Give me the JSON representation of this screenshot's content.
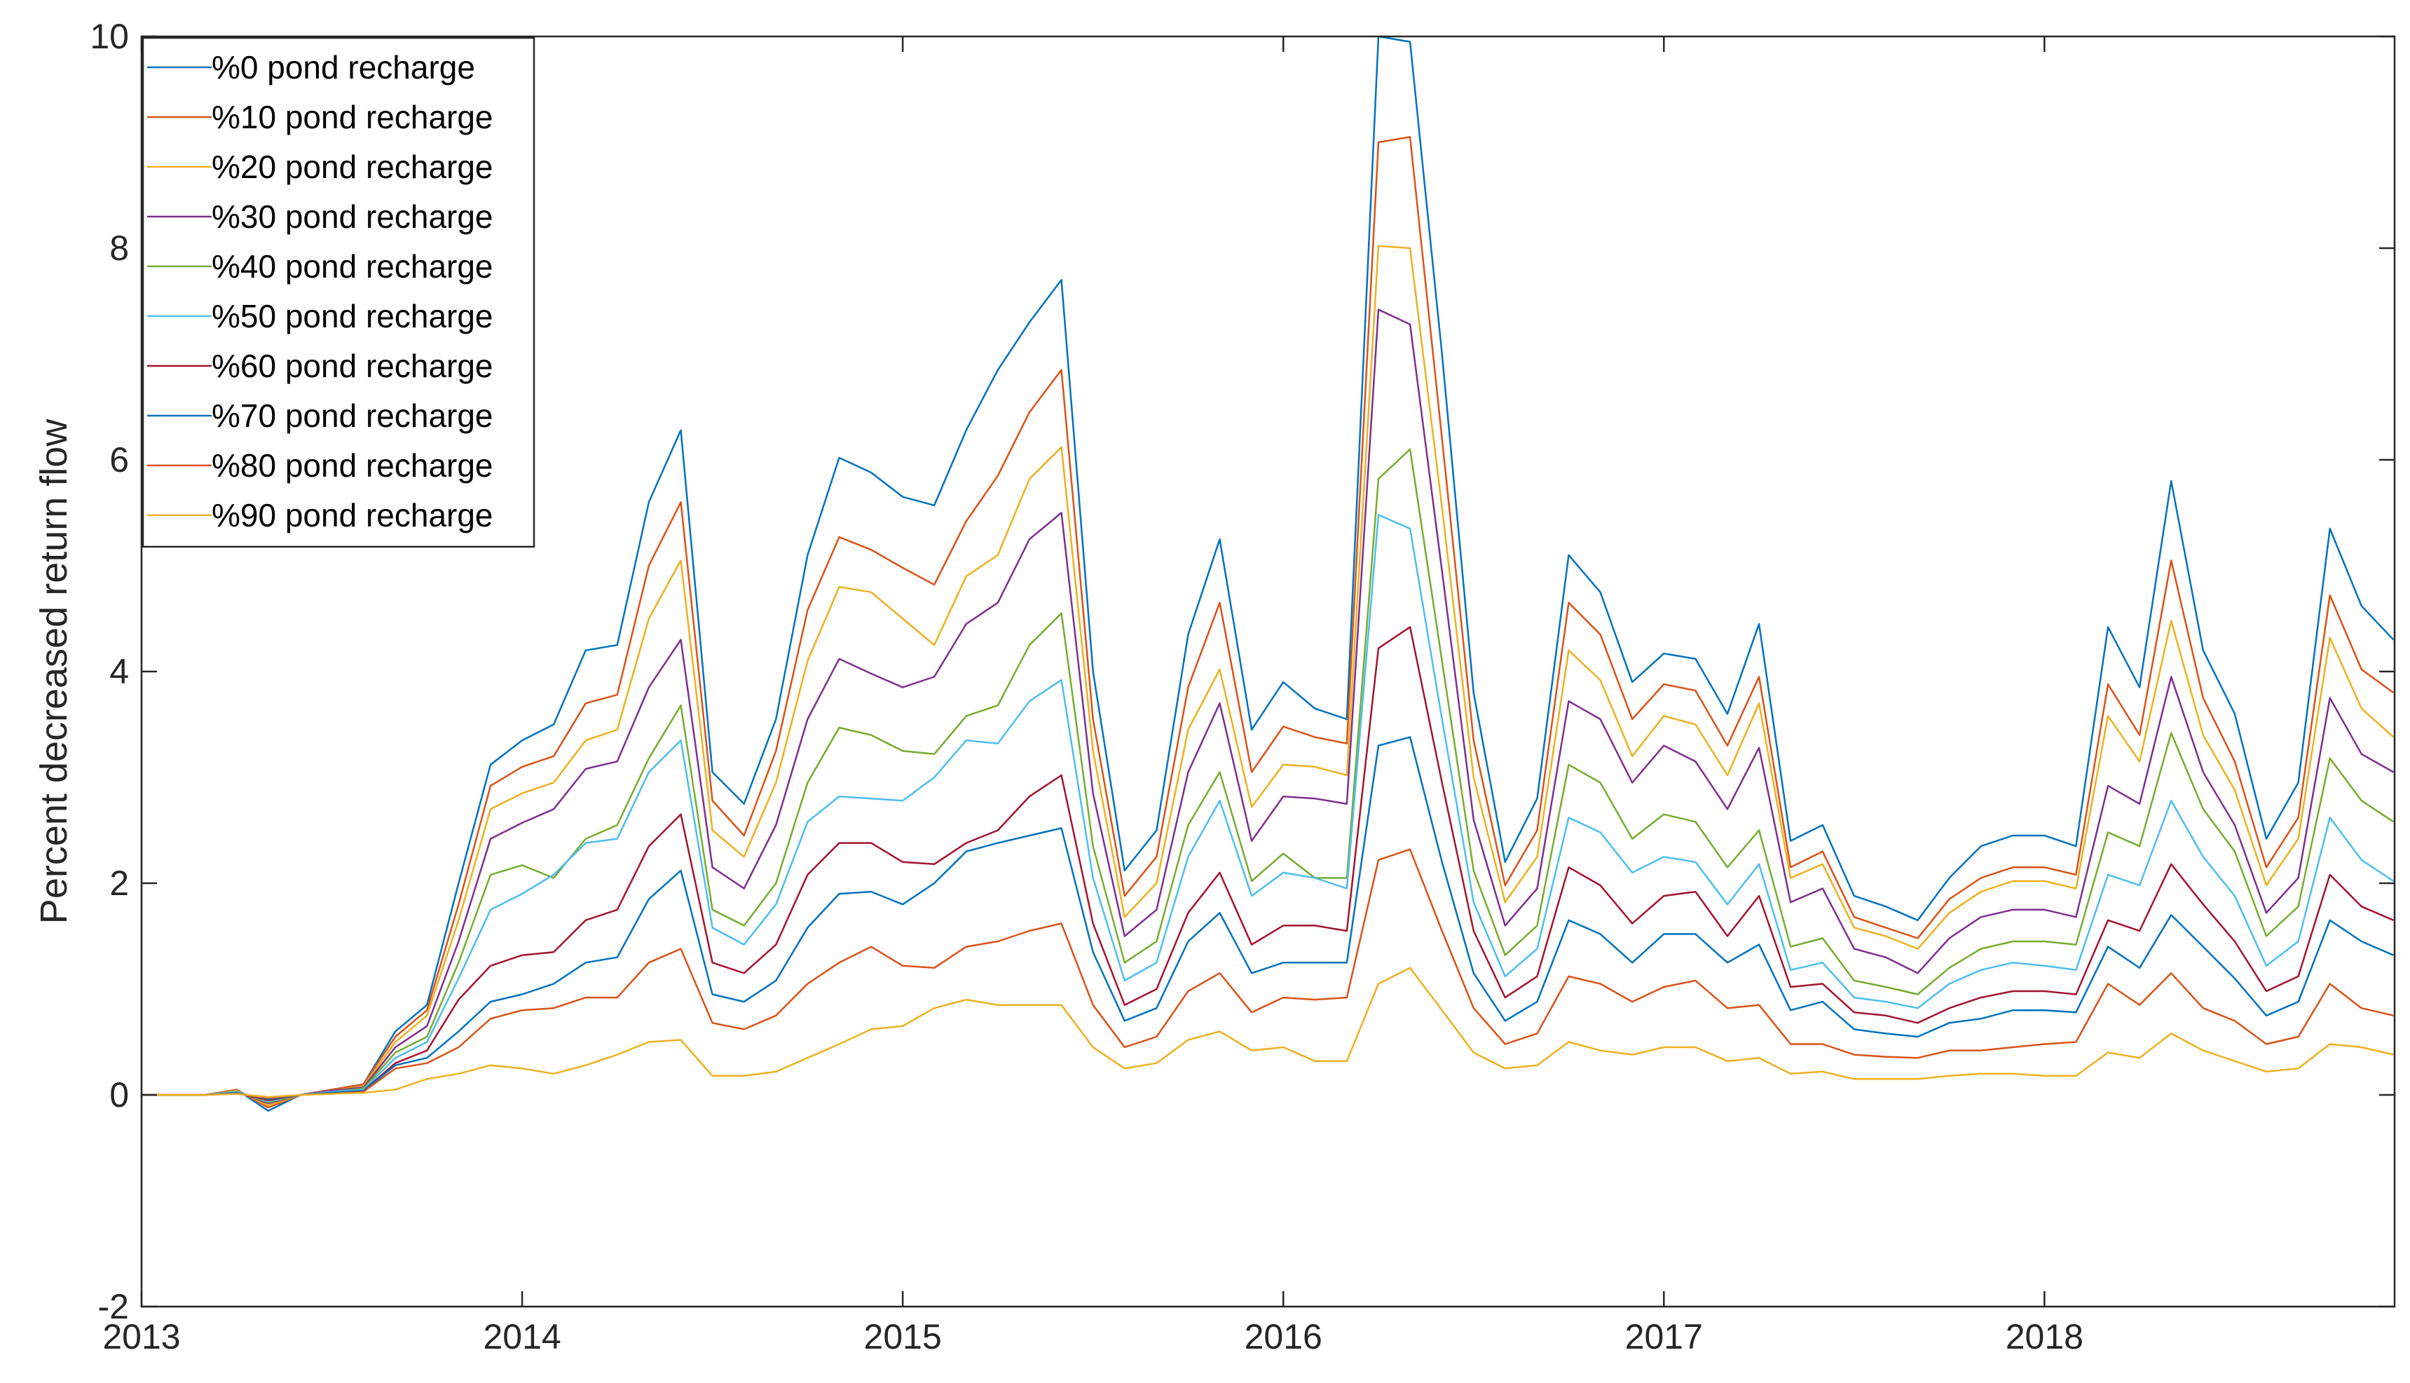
{
  "chart_data": {
    "type": "line",
    "title": "",
    "xlabel": "",
    "ylabel": "Percent decreased return flow",
    "xlim": [
      2013,
      2018.92
    ],
    "ylim": [
      -2,
      10
    ],
    "xticks": [
      2013,
      2014,
      2015,
      2016,
      2017,
      2018
    ],
    "xtick_labels": [
      "2013",
      "2014",
      "2015",
      "2016",
      "2017",
      "2018"
    ],
    "yticks": [
      -2,
      0,
      2,
      4,
      6,
      8,
      10
    ],
    "ytick_labels": [
      "-2",
      "0",
      "2",
      "4",
      "6",
      "8",
      "10"
    ],
    "grid": false,
    "legend_position": "top-left",
    "x": [
      2013.0,
      2013.083,
      2013.167,
      2013.25,
      2013.333,
      2013.417,
      2013.5,
      2013.583,
      2013.667,
      2013.75,
      2013.833,
      2013.917,
      2014.0,
      2014.083,
      2014.167,
      2014.25,
      2014.333,
      2014.417,
      2014.5,
      2014.583,
      2014.667,
      2014.75,
      2014.833,
      2014.917,
      2015.0,
      2015.083,
      2015.167,
      2015.25,
      2015.333,
      2015.417,
      2015.5,
      2015.583,
      2015.667,
      2015.75,
      2015.833,
      2015.917,
      2016.0,
      2016.083,
      2016.167,
      2016.25,
      2016.333,
      2016.417,
      2016.5,
      2016.583,
      2016.667,
      2016.75,
      2016.833,
      2016.917,
      2017.0,
      2017.083,
      2017.167,
      2017.25,
      2017.333,
      2017.417,
      2017.5,
      2017.583,
      2017.667,
      2017.75,
      2017.833,
      2017.917,
      2018.0,
      2018.083,
      2018.167,
      2018.25,
      2018.333,
      2018.417,
      2018.5,
      2018.583,
      2018.667,
      2018.75,
      2018.833,
      2018.917
    ],
    "series": [
      {
        "name": "%0 pond recharge",
        "color": "#0072BD",
        "values": [
          0,
          0,
          0,
          0.05,
          -0.15,
          0,
          0.05,
          0.1,
          0.6,
          0.85,
          2.0,
          3.12,
          3.35,
          3.5,
          4.2,
          4.25,
          5.6,
          6.28,
          3.05,
          2.75,
          3.55,
          5.1,
          6.02,
          5.88,
          5.65,
          5.57,
          6.28,
          6.85,
          7.3,
          7.7,
          4.0,
          2.12,
          2.5,
          4.35,
          5.25,
          3.45,
          3.9,
          3.65,
          3.55,
          10.0,
          9.95,
          7.0,
          3.8,
          2.2,
          2.8,
          5.1,
          4.75,
          3.9,
          4.17,
          4.12,
          3.6,
          4.45,
          2.4,
          2.55,
          1.88,
          1.78,
          1.65,
          2.05,
          2.35,
          2.45,
          2.45,
          2.35,
          4.42,
          3.85,
          5.8,
          4.2,
          3.6,
          2.42,
          2.95,
          5.35,
          4.62,
          4.3
        ]
      },
      {
        "name": "%10 pond recharge",
        "color": "#D95319",
        "values": [
          0,
          0,
          0,
          0.05,
          -0.12,
          0,
          0.05,
          0.1,
          0.55,
          0.8,
          1.8,
          2.92,
          3.1,
          3.2,
          3.7,
          3.78,
          5.0,
          5.6,
          2.78,
          2.45,
          3.25,
          4.58,
          5.27,
          5.15,
          4.98,
          4.82,
          5.42,
          5.85,
          6.45,
          6.85,
          3.55,
          1.88,
          2.25,
          3.85,
          4.65,
          3.05,
          3.48,
          3.38,
          3.32,
          9.0,
          9.05,
          6.2,
          3.35,
          1.98,
          2.5,
          4.65,
          4.35,
          3.55,
          3.88,
          3.82,
          3.3,
          3.95,
          2.15,
          2.3,
          1.68,
          1.58,
          1.48,
          1.85,
          2.05,
          2.15,
          2.15,
          2.08,
          3.88,
          3.4,
          5.05,
          3.75,
          3.15,
          2.15,
          2.62,
          4.72,
          4.02,
          3.8
        ]
      },
      {
        "name": "%20 pond recharge",
        "color": "#EDB120",
        "values": [
          0,
          0,
          0,
          0.04,
          -0.1,
          0,
          0.04,
          0.08,
          0.5,
          0.75,
          1.65,
          2.7,
          2.85,
          2.95,
          3.35,
          3.45,
          4.5,
          5.05,
          2.5,
          2.25,
          2.95,
          4.1,
          4.8,
          4.75,
          4.5,
          4.25,
          4.9,
          5.1,
          5.82,
          6.12,
          3.25,
          1.68,
          2.0,
          3.45,
          4.02,
          2.72,
          3.12,
          3.1,
          3.02,
          8.02,
          8.0,
          5.55,
          3.0,
          1.82,
          2.25,
          4.2,
          3.92,
          3.2,
          3.58,
          3.5,
          3.02,
          3.7,
          2.05,
          2.18,
          1.58,
          1.5,
          1.38,
          1.72,
          1.92,
          2.02,
          2.02,
          1.95,
          3.58,
          3.15,
          4.48,
          3.4,
          2.88,
          1.98,
          2.42,
          4.32,
          3.65,
          3.38
        ]
      },
      {
        "name": "%30 pond recharge",
        "color": "#7E2F8E",
        "values": [
          0,
          0,
          0,
          0.03,
          -0.08,
          0,
          0.04,
          0.07,
          0.45,
          0.65,
          1.45,
          2.42,
          2.57,
          2.7,
          3.08,
          3.15,
          3.85,
          4.3,
          2.15,
          1.95,
          2.55,
          3.55,
          4.12,
          3.98,
          3.85,
          3.95,
          4.45,
          4.65,
          5.25,
          5.5,
          2.85,
          1.5,
          1.75,
          3.05,
          3.7,
          2.4,
          2.82,
          2.8,
          2.75,
          7.42,
          7.28,
          4.95,
          2.6,
          1.6,
          1.95,
          3.72,
          3.55,
          2.95,
          3.3,
          3.15,
          2.7,
          3.28,
          1.82,
          1.95,
          1.38,
          1.3,
          1.15,
          1.48,
          1.68,
          1.75,
          1.75,
          1.68,
          2.92,
          2.75,
          3.95,
          3.05,
          2.55,
          1.72,
          2.05,
          3.75,
          3.22,
          3.05
        ]
      },
      {
        "name": "%40 pond recharge",
        "color": "#77AC30",
        "values": [
          0,
          0,
          0,
          0.03,
          -0.07,
          0,
          0.03,
          0.06,
          0.4,
          0.55,
          1.25,
          2.08,
          2.17,
          2.05,
          2.42,
          2.55,
          3.18,
          3.68,
          1.75,
          1.6,
          2.0,
          2.95,
          3.47,
          3.4,
          3.25,
          3.22,
          3.58,
          3.68,
          4.25,
          4.55,
          2.35,
          1.25,
          1.45,
          2.55,
          3.05,
          2.02,
          2.28,
          2.05,
          2.05,
          5.82,
          6.1,
          4.1,
          2.12,
          1.32,
          1.6,
          3.12,
          2.95,
          2.42,
          2.65,
          2.58,
          2.15,
          2.5,
          1.4,
          1.48,
          1.08,
          1.02,
          0.95,
          1.2,
          1.38,
          1.45,
          1.45,
          1.42,
          2.48,
          2.35,
          3.42,
          2.7,
          2.3,
          1.5,
          1.78,
          3.18,
          2.78,
          2.58
        ]
      },
      {
        "name": "%50 pond recharge",
        "color": "#4DBEEE",
        "values": [
          0,
          0,
          0,
          0.03,
          -0.06,
          0,
          0.03,
          0.05,
          0.35,
          0.5,
          1.1,
          1.75,
          1.9,
          2.08,
          2.38,
          2.42,
          3.05,
          3.35,
          1.58,
          1.42,
          1.8,
          2.58,
          2.82,
          2.8,
          2.78,
          3.0,
          3.35,
          3.32,
          3.72,
          3.92,
          2.05,
          1.08,
          1.25,
          2.25,
          2.78,
          1.88,
          2.1,
          2.05,
          1.95,
          5.48,
          5.35,
          3.55,
          1.82,
          1.12,
          1.38,
          2.62,
          2.48,
          2.1,
          2.25,
          2.2,
          1.8,
          2.18,
          1.18,
          1.25,
          0.92,
          0.88,
          0.82,
          1.05,
          1.18,
          1.25,
          1.22,
          1.18,
          2.08,
          1.98,
          2.78,
          2.25,
          1.88,
          1.22,
          1.45,
          2.62,
          2.22,
          2.02
        ]
      },
      {
        "name": "%60 pond recharge",
        "color": "#A2142F",
        "values": [
          0,
          0,
          0,
          0.02,
          -0.05,
          0,
          0.02,
          0.04,
          0.3,
          0.42,
          0.9,
          1.22,
          1.32,
          1.35,
          1.65,
          1.75,
          2.35,
          2.65,
          1.25,
          1.15,
          1.42,
          2.08,
          2.38,
          2.38,
          2.2,
          2.18,
          2.38,
          2.5,
          2.82,
          3.02,
          1.62,
          0.85,
          1.0,
          1.72,
          2.1,
          1.42,
          1.6,
          1.6,
          1.55,
          4.22,
          4.42,
          2.95,
          1.55,
          0.92,
          1.12,
          2.15,
          1.98,
          1.62,
          1.88,
          1.92,
          1.5,
          1.88,
          1.02,
          1.05,
          0.78,
          0.75,
          0.68,
          0.82,
          0.92,
          0.98,
          0.98,
          0.95,
          1.65,
          1.55,
          2.18,
          1.8,
          1.45,
          0.98,
          1.12,
          2.08,
          1.78,
          1.65
        ]
      },
      {
        "name": "%70 pond recharge",
        "color": "#0072BD",
        "values": [
          0,
          0,
          0,
          0.02,
          -0.04,
          0,
          0.02,
          0.04,
          0.28,
          0.35,
          0.6,
          0.88,
          0.95,
          1.05,
          1.25,
          1.3,
          1.85,
          2.12,
          0.95,
          0.88,
          1.08,
          1.58,
          1.9,
          1.92,
          1.8,
          2.0,
          2.3,
          2.38,
          2.45,
          2.52,
          1.35,
          0.7,
          0.82,
          1.45,
          1.72,
          1.15,
          1.25,
          1.25,
          1.25,
          3.3,
          3.38,
          2.2,
          1.15,
          0.7,
          0.88,
          1.65,
          1.52,
          1.25,
          1.52,
          1.52,
          1.25,
          1.42,
          0.8,
          0.88,
          0.62,
          0.58,
          0.55,
          0.68,
          0.72,
          0.8,
          0.8,
          0.78,
          1.4,
          1.2,
          1.7,
          1.4,
          1.1,
          0.75,
          0.88,
          1.65,
          1.45,
          1.32
        ]
      },
      {
        "name": "%80 pond recharge",
        "color": "#D95319",
        "values": [
          0,
          0,
          0,
          0.01,
          -0.03,
          0,
          0.01,
          0.03,
          0.25,
          0.3,
          0.45,
          0.72,
          0.8,
          0.82,
          0.92,
          0.92,
          1.25,
          1.38,
          0.68,
          0.62,
          0.75,
          1.05,
          1.25,
          1.4,
          1.22,
          1.2,
          1.4,
          1.45,
          1.55,
          1.62,
          0.85,
          0.45,
          0.55,
          0.98,
          1.15,
          0.78,
          0.92,
          0.9,
          0.92,
          2.22,
          2.32,
          1.55,
          0.82,
          0.48,
          0.58,
          1.12,
          1.05,
          0.88,
          1.02,
          1.08,
          0.82,
          0.85,
          0.48,
          0.48,
          0.38,
          0.36,
          0.35,
          0.42,
          0.42,
          0.45,
          0.48,
          0.5,
          1.05,
          0.85,
          1.15,
          0.82,
          0.7,
          0.48,
          0.55,
          1.05,
          0.82,
          0.75
        ]
      },
      {
        "name": "%90 pond recharge",
        "color": "#EDB120",
        "values": [
          0,
          0,
          0,
          0.01,
          -0.02,
          0,
          0.01,
          0.02,
          0.05,
          0.15,
          0.2,
          0.28,
          0.25,
          0.2,
          0.28,
          0.38,
          0.5,
          0.52,
          0.18,
          0.18,
          0.22,
          0.35,
          0.48,
          0.62,
          0.65,
          0.82,
          0.9,
          0.85,
          0.85,
          0.85,
          0.45,
          0.25,
          0.3,
          0.52,
          0.6,
          0.42,
          0.45,
          0.32,
          0.32,
          1.05,
          1.2,
          0.8,
          0.4,
          0.25,
          0.28,
          0.5,
          0.42,
          0.38,
          0.45,
          0.45,
          0.32,
          0.35,
          0.2,
          0.22,
          0.15,
          0.15,
          0.15,
          0.18,
          0.2,
          0.2,
          0.18,
          0.18,
          0.4,
          0.35,
          0.58,
          0.42,
          0.32,
          0.22,
          0.25,
          0.48,
          0.45,
          0.38
        ]
      }
    ]
  }
}
